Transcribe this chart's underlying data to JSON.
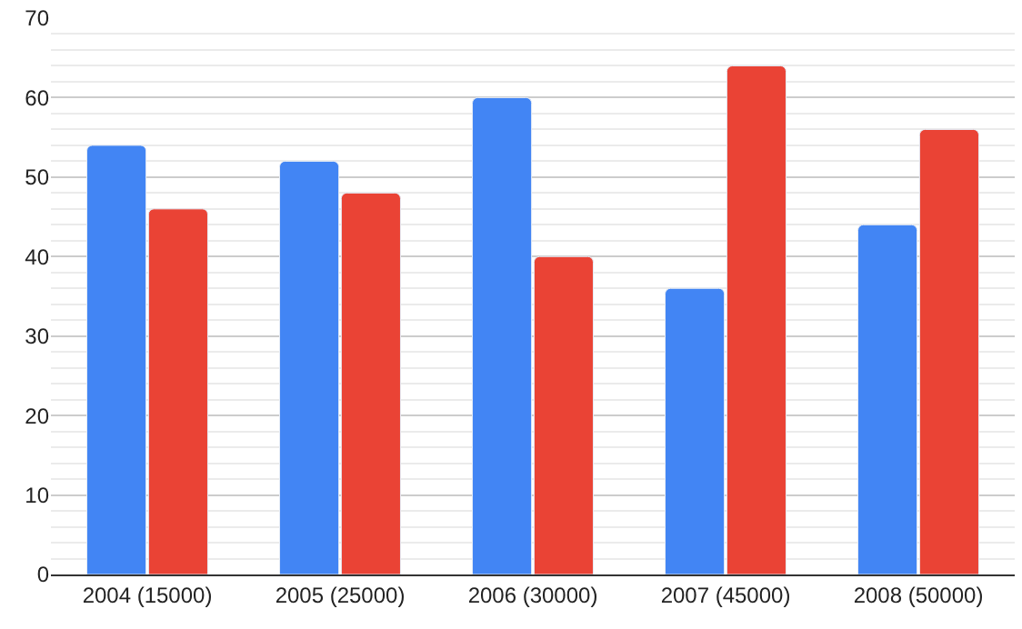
{
  "chart_data": {
    "type": "bar",
    "categories": [
      "2004 (15000)",
      "2005 (25000)",
      "2006 (30000)",
      "2007 (45000)",
      "2008 (50000)"
    ],
    "series": [
      {
        "color": "#4285f4",
        "values": [
          54,
          52,
          60,
          36,
          44
        ]
      },
      {
        "color": "#ea4335",
        "values": [
          46,
          48,
          40,
          64,
          56
        ]
      }
    ],
    "ylim": [
      0,
      70
    ],
    "yticks": [
      0,
      10,
      20,
      30,
      40,
      50,
      60,
      70
    ],
    "grid": "y"
  }
}
